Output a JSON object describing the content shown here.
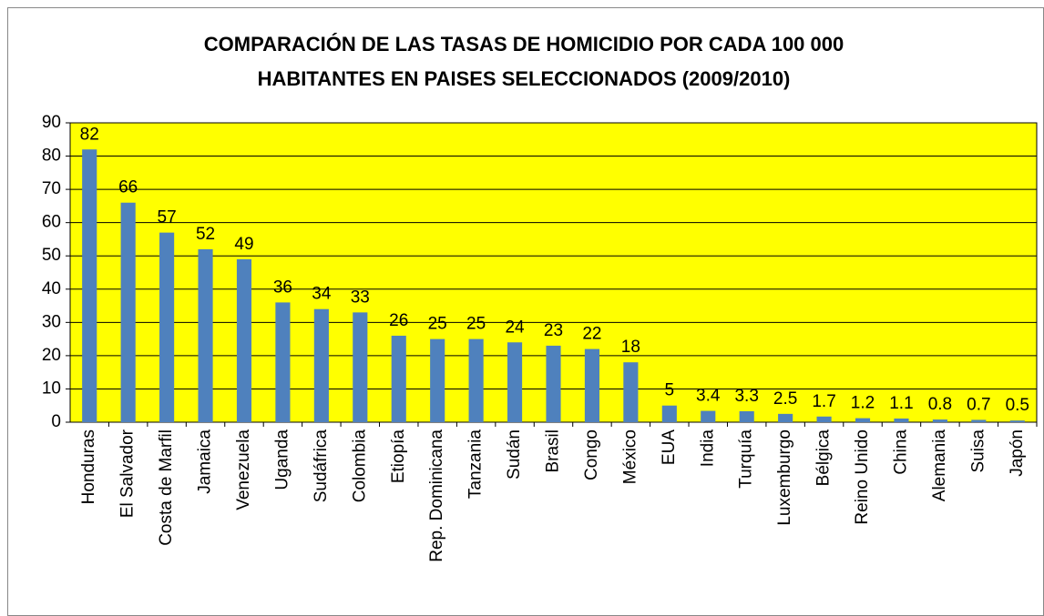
{
  "chart_data": {
    "type": "bar",
    "title": [
      "COMPARACIÓN DE LAS TASAS DE HOMICIDIO POR CADA 100 000",
      "HABITANTES EN PAISES SELECCIONADOS (2009/2010)"
    ],
    "categories": [
      "Honduras",
      "El Salvador",
      "Costa de Marfil",
      "Jamaica",
      "Venezuela",
      "Uganda",
      "Sudáfrica",
      "Colombia",
      "Etiopía",
      "Rep. Dominicana",
      "Tanzania",
      "Sudán",
      "Brasil",
      "Congo",
      "México",
      "EUA",
      "India",
      "Turquía",
      "Luxemburgo",
      "Bélgica",
      "Reino Unido",
      "China",
      "Alemania",
      "Suisa",
      "Japón"
    ],
    "values": [
      82,
      66,
      57,
      52,
      49,
      36,
      34,
      33,
      26,
      25,
      25,
      24,
      23,
      22,
      18,
      5,
      3.4,
      3.3,
      2.5,
      1.7,
      1.2,
      1.1,
      0.8,
      0.7,
      0.5
    ],
    "color": "#4f81bd",
    "plot_background": "#ffff00",
    "ylim": [
      0,
      90
    ],
    "yticks": [
      0,
      10,
      20,
      30,
      40,
      50,
      60,
      70,
      80,
      90
    ],
    "grid": true
  }
}
